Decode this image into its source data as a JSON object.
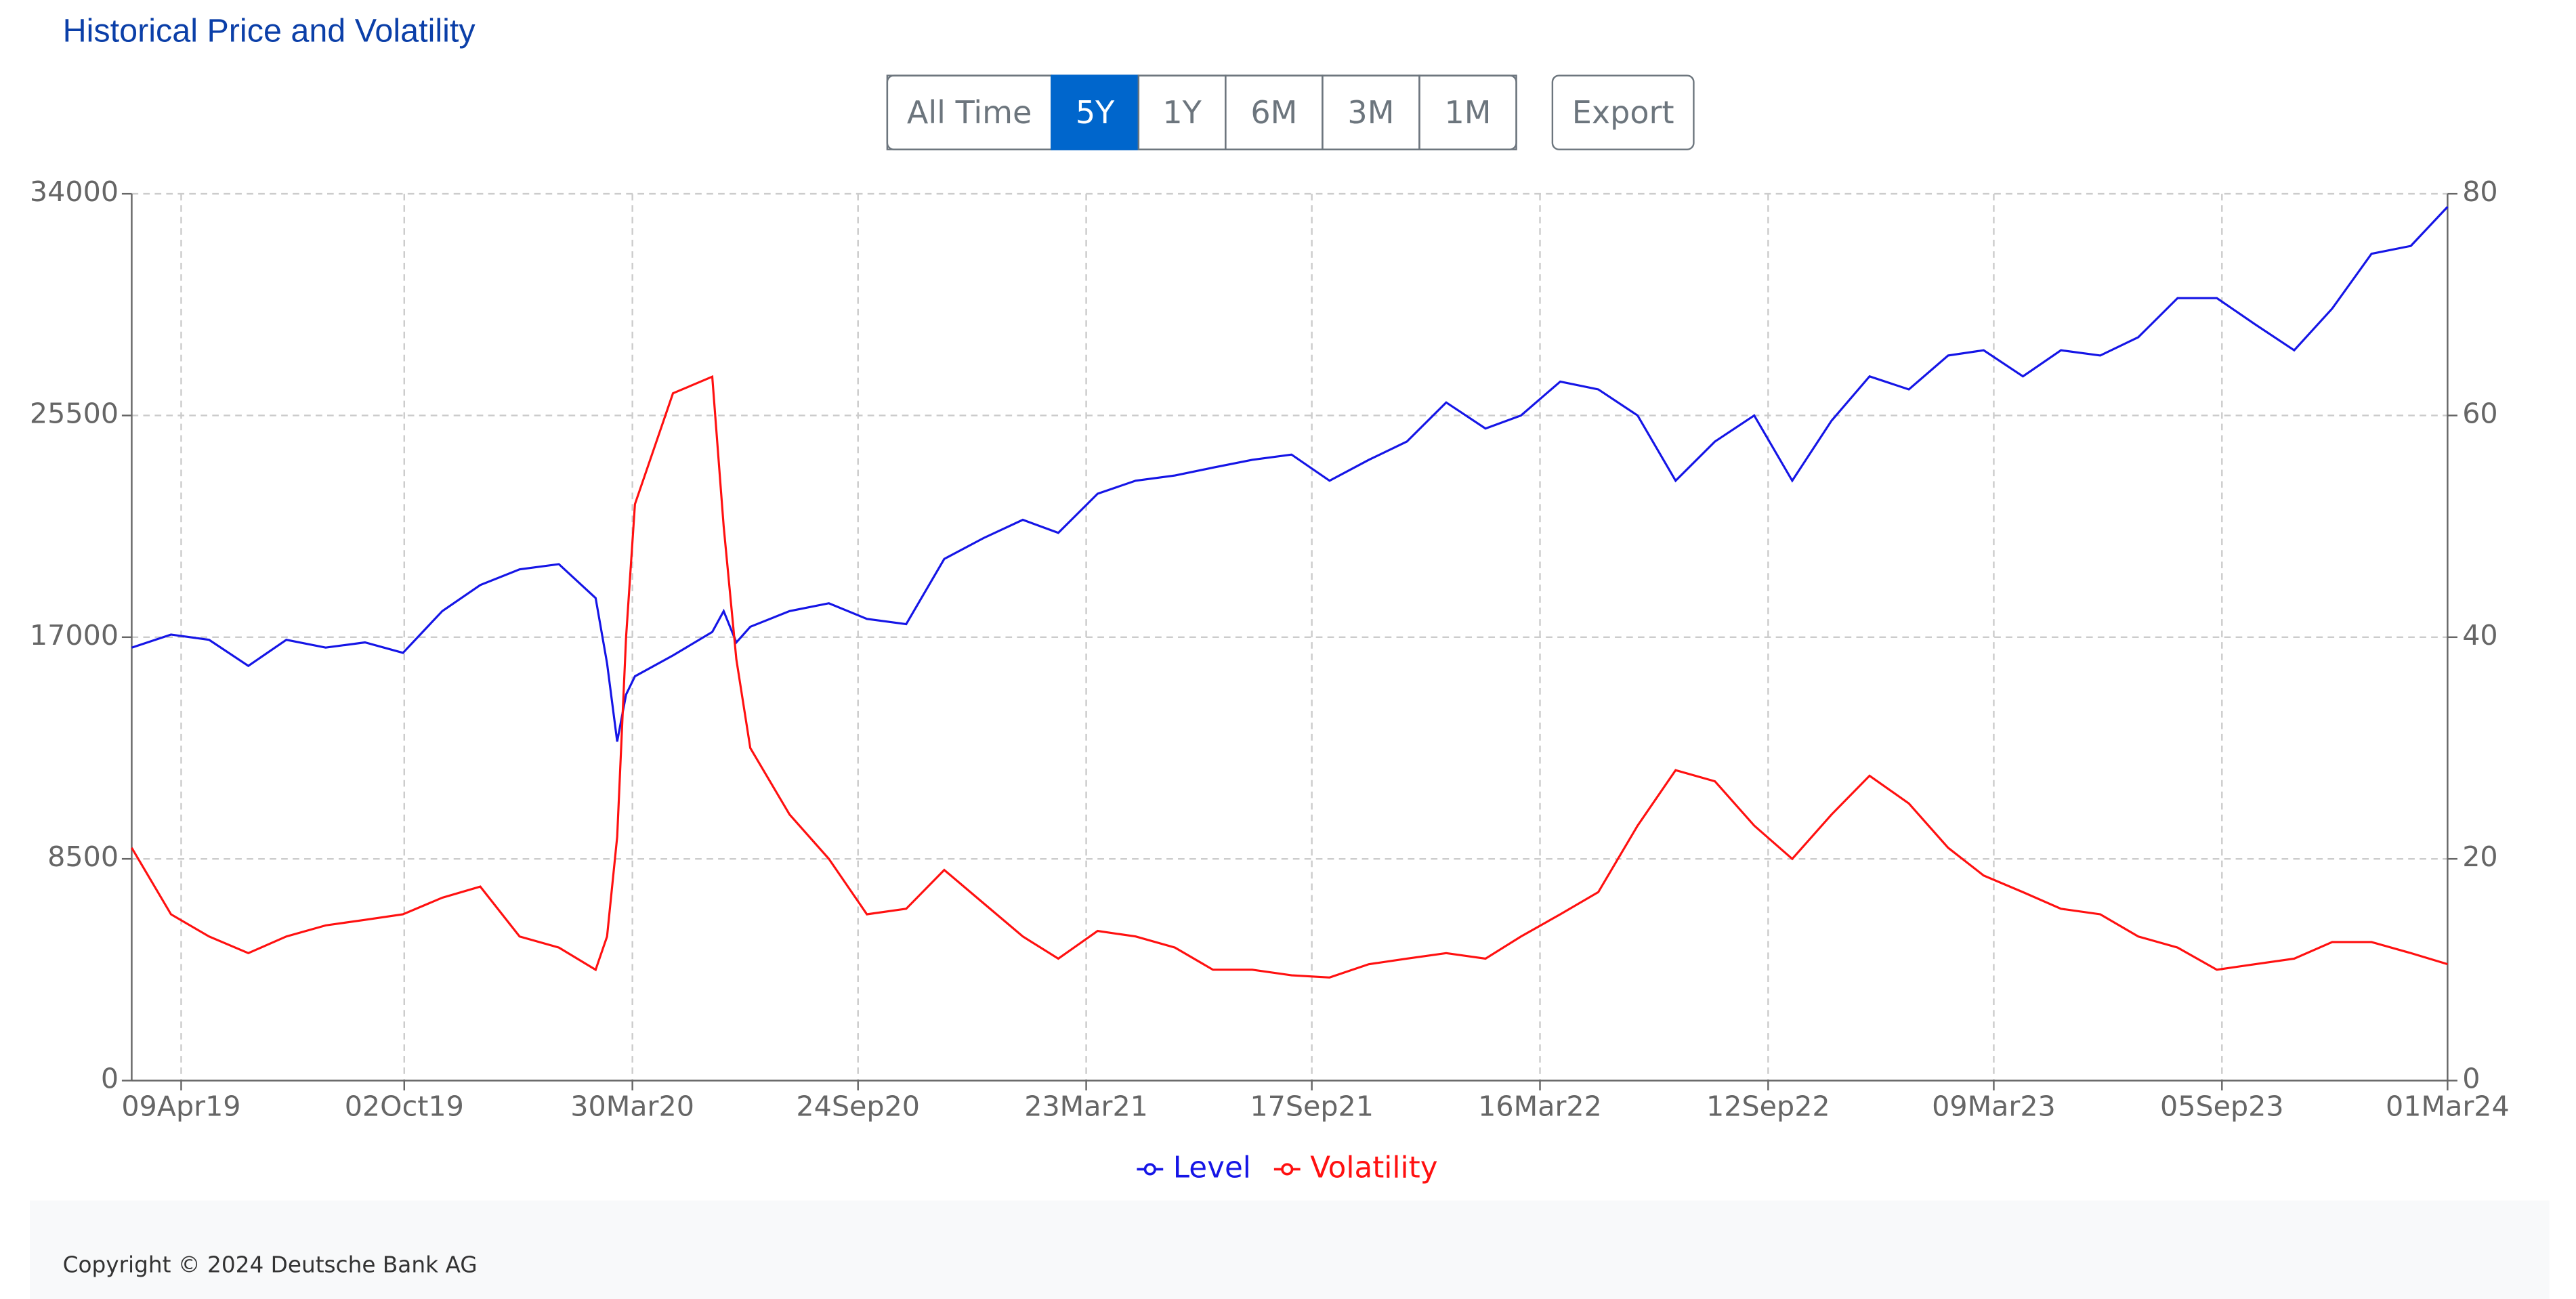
{
  "chart_data": {
    "type": "line",
    "title": "Historical Price and Volatility",
    "x": [
      "2019-03-01",
      "2019-04-01",
      "2019-05-01",
      "2019-06-01",
      "2019-07-01",
      "2019-08-01",
      "2019-09-01",
      "2019-10-01",
      "2019-11-01",
      "2019-12-01",
      "2020-01-01",
      "2020-02-01",
      "2020-03-01",
      "2020-03-10",
      "2020-03-18",
      "2020-03-25",
      "2020-04-01",
      "2020-05-01",
      "2020-06-01",
      "2020-06-10",
      "2020-06-20",
      "2020-07-01",
      "2020-08-01",
      "2020-09-01",
      "2020-10-01",
      "2020-11-01",
      "2020-12-01",
      "2021-01-01",
      "2021-02-01",
      "2021-03-01",
      "2021-04-01",
      "2021-05-01",
      "2021-06-01",
      "2021-07-01",
      "2021-08-01",
      "2021-09-01",
      "2021-10-01",
      "2021-11-01",
      "2021-12-01",
      "2022-01-01",
      "2022-02-01",
      "2022-03-01",
      "2022-04-01",
      "2022-05-01",
      "2022-06-01",
      "2022-07-01",
      "2022-08-01",
      "2022-09-01",
      "2022-10-01",
      "2022-11-01",
      "2022-12-01",
      "2023-01-01",
      "2023-02-01",
      "2023-03-01",
      "2023-04-01",
      "2023-05-01",
      "2023-06-01",
      "2023-07-01",
      "2023-08-01",
      "2023-09-01",
      "2023-10-01",
      "2023-11-01",
      "2023-12-01",
      "2024-01-01",
      "2024-02-01",
      "2024-03-01"
    ],
    "series": [
      {
        "name": "Level",
        "color": "#1515e6",
        "axis": "y",
        "values": [
          16600,
          17100,
          16900,
          15900,
          16900,
          16600,
          16800,
          16400,
          18000,
          19000,
          19600,
          19800,
          18500,
          16000,
          13000,
          14800,
          15500,
          16300,
          17200,
          18000,
          16800,
          17400,
          18000,
          18300,
          17700,
          17500,
          20000,
          20800,
          21500,
          21000,
          22500,
          23000,
          23200,
          23500,
          23800,
          24000,
          23000,
          23800,
          24500,
          26000,
          25000,
          25500,
          26800,
          26500,
          25500,
          23000,
          24500,
          25500,
          23000,
          25300,
          27000,
          26500,
          27800,
          28000,
          27000,
          28000,
          27800,
          28500,
          30000,
          30000,
          29000,
          28000,
          29600,
          31700,
          32000,
          33500
        ]
      },
      {
        "name": "Volatility",
        "color": "#ff1010",
        "axis": "y2",
        "values": [
          21,
          15,
          13,
          11.5,
          13,
          14,
          14.5,
          15,
          16.5,
          17.5,
          13,
          12,
          10,
          13,
          22,
          40,
          52,
          62,
          63.5,
          50,
          38,
          30,
          24,
          20,
          15,
          15.5,
          19,
          16,
          13,
          11,
          13.5,
          13,
          12,
          10,
          10,
          9.5,
          9.3,
          10.5,
          11,
          11.5,
          11,
          13,
          15,
          17,
          23,
          28,
          27,
          23,
          20,
          24,
          27.5,
          25,
          21,
          18.5,
          17,
          15.5,
          15,
          13,
          12,
          10,
          10.5,
          11,
          12.5,
          12.5,
          11.5,
          10.5
        ]
      }
    ],
    "xlim": [
      "2019-03-01",
      "2024-03-01"
    ],
    "xticks": [
      {
        "value": "2019-04-09",
        "label": "09Apr19"
      },
      {
        "value": "2019-10-02",
        "label": "02Oct19"
      },
      {
        "value": "2020-03-30",
        "label": "30Mar20"
      },
      {
        "value": "2020-09-24",
        "label": "24Sep20"
      },
      {
        "value": "2021-03-23",
        "label": "23Mar21"
      },
      {
        "value": "2021-09-17",
        "label": "17Sep21"
      },
      {
        "value": "2022-03-16",
        "label": "16Mar22"
      },
      {
        "value": "2022-09-12",
        "label": "12Sep22"
      },
      {
        "value": "2023-03-09",
        "label": "09Mar23"
      },
      {
        "value": "2023-09-05",
        "label": "05Sep23"
      },
      {
        "value": "2024-03-01",
        "label": "01Mar24"
      }
    ],
    "ylim": [
      0,
      34000
    ],
    "yticks": [
      0,
      8500,
      17000,
      25500,
      34000
    ],
    "y2lim": [
      0,
      80
    ],
    "y2ticks": [
      0,
      20,
      40,
      60,
      80
    ],
    "grid": true,
    "legend": "bottom"
  },
  "toolbar": {
    "ranges": [
      "All Time",
      "5Y",
      "1Y",
      "6M",
      "3M",
      "1M"
    ],
    "selected": "5Y",
    "export": "Export"
  },
  "footer": "Copyright © 2024 Deutsche Bank AG"
}
